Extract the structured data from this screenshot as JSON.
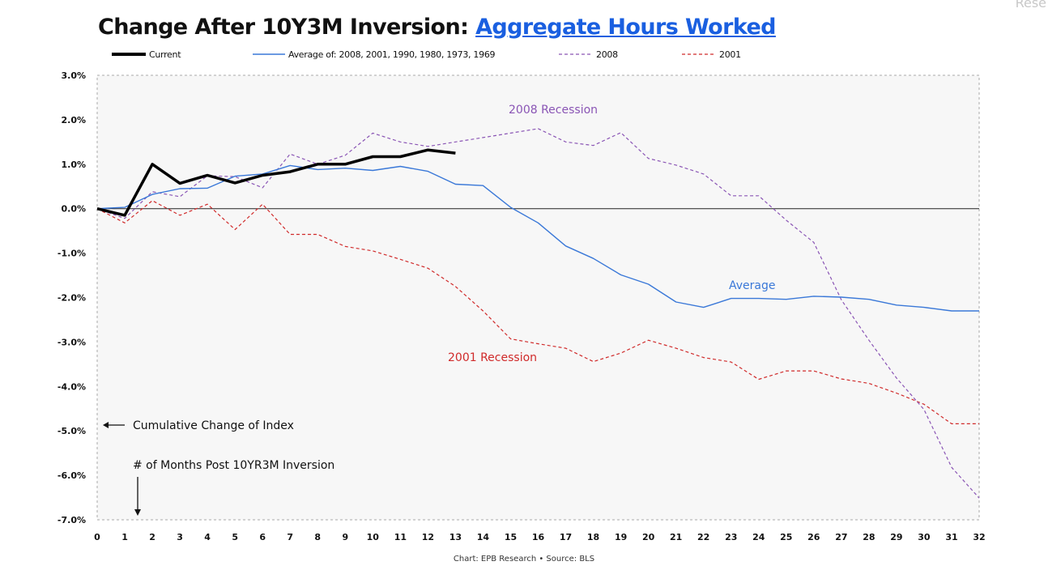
{
  "title": {
    "main": "Change After 10Y3M Inversion: ",
    "highlight": "Aggregate Hours Worked"
  },
  "corner_text": "Rese",
  "source": "Chart: EPB Research  •  Source: BLS",
  "annotations": {
    "cumulative": "Cumulative Change of Index",
    "months": "# of Months Post 10YR3M Inversion",
    "recession_2008": "2008 Recession",
    "recession_2001": "2001 Recession",
    "average": "Average"
  },
  "colors": {
    "current": "#000000",
    "average": "#3a78d8",
    "s2008": "#8a55b5",
    "s2001": "#d02a2a",
    "highlight": "#1a5fe0"
  },
  "chart_data": {
    "type": "line",
    "title": "Change After 10Y3M Inversion: Aggregate Hours Worked",
    "xlabel": "# of Months Post 10YR3M Inversion",
    "ylabel": "Cumulative Change of Index",
    "xlim": [
      0,
      32
    ],
    "ylim": [
      -7.0,
      3.0
    ],
    "x_ticks": [
      "0",
      "1",
      "2",
      "3",
      "4",
      "5",
      "6",
      "7",
      "8",
      "9",
      "10",
      "11",
      "12",
      "13",
      "14",
      "15",
      "16",
      "17",
      "18",
      "19",
      "20",
      "21",
      "22",
      "23",
      "24",
      "25",
      "26",
      "27",
      "28",
      "29",
      "30",
      "31",
      "32"
    ],
    "y_ticks": [
      "3.0%",
      "2.0%",
      "1.0%",
      "0.0%",
      "-1.0%",
      "-2.0%",
      "-3.0%",
      "-4.0%",
      "-5.0%",
      "-6.0%",
      "-7.0%"
    ],
    "legend_position": "top",
    "series": [
      {
        "name": "Current",
        "style": "solid-thick",
        "x": [
          0,
          1,
          2,
          3,
          4,
          5,
          6,
          7,
          8,
          9,
          10,
          11,
          12,
          13
        ],
        "values": [
          0,
          -0.15,
          1.0,
          0.57,
          0.75,
          0.58,
          0.75,
          0.83,
          1.0,
          1.0,
          1.17,
          1.17,
          1.32,
          1.25
        ]
      },
      {
        "name": "Average of: 2008, 2001, 1990, 1980, 1973, 1969",
        "style": "solid",
        "x": [
          0,
          1,
          2,
          3,
          4,
          5,
          6,
          7,
          8,
          9,
          10,
          11,
          12,
          13,
          14,
          15,
          16,
          17,
          18,
          19,
          20,
          21,
          22,
          23,
          24,
          25,
          26,
          27,
          28,
          29,
          30,
          31,
          32
        ],
        "values": [
          0,
          0.03,
          0.32,
          0.45,
          0.46,
          0.73,
          0.78,
          0.97,
          0.88,
          0.91,
          0.86,
          0.95,
          0.84,
          0.55,
          0.52,
          0.03,
          -0.32,
          -0.84,
          -1.12,
          -1.49,
          -1.7,
          -2.1,
          -2.22,
          -2.02,
          -2.02,
          -2.04,
          -1.97,
          -1.99,
          -2.04,
          -2.17,
          -2.22,
          -2.3,
          -2.3
        ]
      },
      {
        "name": "2008",
        "style": "dashed",
        "x": [
          0,
          1,
          2,
          3,
          4,
          5,
          6,
          7,
          8,
          9,
          10,
          11,
          12,
          13,
          14,
          15,
          16,
          17,
          18,
          19,
          20,
          21,
          22,
          23,
          24,
          25,
          26,
          27,
          28,
          29,
          30,
          31,
          32
        ],
        "values": [
          0,
          -0.22,
          0.38,
          0.27,
          0.74,
          0.72,
          0.47,
          1.23,
          1.0,
          1.2,
          1.7,
          1.5,
          1.4,
          1.5,
          1.6,
          1.7,
          1.8,
          1.5,
          1.42,
          1.71,
          1.13,
          0.98,
          0.78,
          0.29,
          0.29,
          -0.26,
          -0.76,
          -2.05,
          -2.96,
          -3.81,
          -4.52,
          -5.82,
          -6.51
        ]
      },
      {
        "name": "2001",
        "style": "dashed",
        "x": [
          0,
          1,
          2,
          3,
          4,
          5,
          6,
          7,
          8,
          9,
          10,
          11,
          12,
          13,
          14,
          15,
          16,
          17,
          18,
          19,
          20,
          21,
          22,
          23,
          24,
          25,
          26,
          27,
          28,
          29,
          30,
          31,
          32
        ],
        "values": [
          0,
          -0.32,
          0.18,
          -0.15,
          0.1,
          -0.47,
          0.1,
          -0.58,
          -0.58,
          -0.85,
          -0.95,
          -1.14,
          -1.34,
          -1.75,
          -2.3,
          -2.93,
          -3.04,
          -3.14,
          -3.44,
          -3.25,
          -2.96,
          -3.14,
          -3.35,
          -3.45,
          -3.84,
          -3.65,
          -3.65,
          -3.83,
          -3.93,
          -4.15,
          -4.4,
          -4.84,
          -4.84
        ]
      }
    ]
  }
}
